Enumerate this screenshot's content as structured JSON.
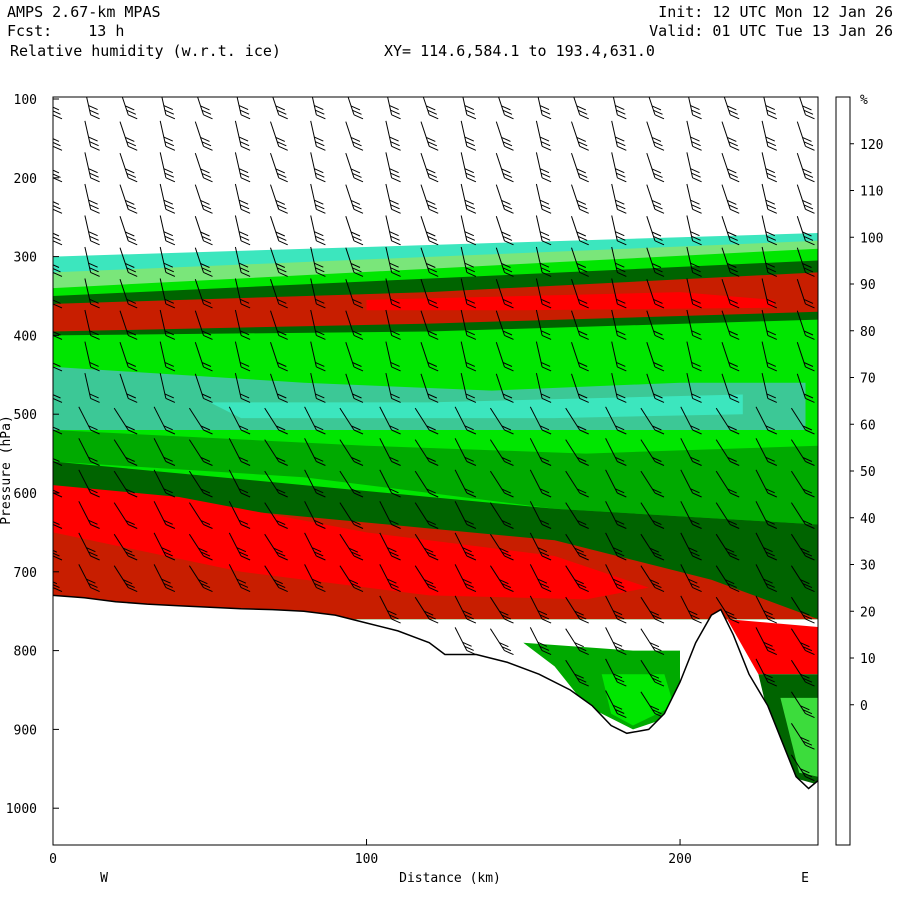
{
  "header": {
    "model": "AMPS 2.67-km MPAS",
    "fcst": "Fcst:    13 h",
    "field": "Relative humidity (w.r.t. ice)",
    "xy": "XY= 114.6,584.1 to 193.4,631.0",
    "init": "Init: 12 UTC Mon 12 Jan 26",
    "valid": "Valid: 01 UTC Tue 13 Jan 26"
  },
  "chart_data": {
    "type": "heatmap",
    "title": "Relative humidity (w.r.t. ice)",
    "xlabel": "Distance (km)",
    "ylabel": "Pressure (hPa)",
    "xlim": [
      0,
      244
    ],
    "ylim": [
      1050,
      100
    ],
    "x_ticks": [
      0,
      100,
      200
    ],
    "y_ticks": [
      100,
      200,
      300,
      400,
      500,
      600,
      700,
      800,
      900,
      1000
    ],
    "x_end_labels": {
      "left": "W",
      "right": "E"
    },
    "colorbar": {
      "unit": "%",
      "labels": [
        120,
        110,
        100,
        90,
        80,
        70,
        60,
        50,
        40,
        30,
        20,
        10,
        0
      ],
      "colors": [
        "#ff0000",
        "#c81e00",
        "#3c5a00",
        "#006400",
        "#00aa00",
        "#00e600",
        "#3cdc3c",
        "#7ae67a",
        "#3cc896",
        "#3ce6be",
        "#c8fae6",
        "#ffffff",
        "#ffffff",
        "#ffffff",
        "#ffffff",
        "#ffffff"
      ]
    },
    "terrain": [
      [
        0,
        730
      ],
      [
        10,
        733
      ],
      [
        20,
        738
      ],
      [
        30,
        741
      ],
      [
        40,
        743
      ],
      [
        50,
        745
      ],
      [
        60,
        747
      ],
      [
        70,
        748
      ],
      [
        80,
        750
      ],
      [
        90,
        755
      ],
      [
        100,
        765
      ],
      [
        110,
        775
      ],
      [
        120,
        790
      ],
      [
        125,
        805
      ],
      [
        135,
        805
      ],
      [
        145,
        815
      ],
      [
        155,
        830
      ],
      [
        165,
        850
      ],
      [
        172,
        870
      ],
      [
        178,
        895
      ],
      [
        183,
        905
      ],
      [
        190,
        900
      ],
      [
        195,
        880
      ],
      [
        200,
        840
      ],
      [
        205,
        790
      ],
      [
        210,
        755
      ],
      [
        213,
        748
      ],
      [
        217,
        780
      ],
      [
        222,
        830
      ],
      [
        228,
        870
      ],
      [
        233,
        920
      ],
      [
        237,
        960
      ],
      [
        241,
        975
      ],
      [
        244,
        965
      ]
    ],
    "layers": [
      {
        "rh": 30,
        "points": [
          [
            0,
            300
          ],
          [
            244,
            270
          ],
          [
            244,
            760
          ],
          [
            0,
            760
          ]
        ]
      },
      {
        "rh": 50,
        "points": [
          [
            0,
            320
          ],
          [
            244,
            280
          ],
          [
            244,
            760
          ],
          [
            0,
            760
          ]
        ]
      },
      {
        "rh": 70,
        "points": [
          [
            0,
            340
          ],
          [
            244,
            290
          ],
          [
            244,
            760
          ],
          [
            0,
            760
          ]
        ]
      },
      {
        "rh": 90,
        "points": [
          [
            0,
            350
          ],
          [
            244,
            305
          ],
          [
            244,
            380
          ],
          [
            120,
            395
          ],
          [
            0,
            400
          ]
        ]
      },
      {
        "rh": 110,
        "points": [
          [
            0,
            360
          ],
          [
            120,
            345
          ],
          [
            244,
            320
          ],
          [
            244,
            370
          ],
          [
            120,
            385
          ],
          [
            0,
            395
          ]
        ]
      },
      {
        "rh": 120,
        "points": [
          [
            100,
            355
          ],
          [
            150,
            350
          ],
          [
            200,
            345
          ],
          [
            230,
            355
          ],
          [
            230,
            365
          ],
          [
            150,
            368
          ],
          [
            100,
            368
          ]
        ]
      },
      {
        "rh": 40,
        "points": [
          [
            0,
            440
          ],
          [
            80,
            460
          ],
          [
            140,
            470
          ],
          [
            200,
            460
          ],
          [
            240,
            460
          ],
          [
            240,
            520
          ],
          [
            180,
            520
          ],
          [
            100,
            520
          ],
          [
            0,
            520
          ]
        ]
      },
      {
        "rh": 30,
        "points": [
          [
            50,
            485
          ],
          [
            120,
            485
          ],
          [
            170,
            480
          ],
          [
            220,
            475
          ],
          [
            220,
            500
          ],
          [
            160,
            505
          ],
          [
            60,
            505
          ]
        ]
      },
      {
        "rh": 80,
        "points": [
          [
            0,
            520
          ],
          [
            100,
            540
          ],
          [
            170,
            550
          ],
          [
            244,
            540
          ],
          [
            244,
            640
          ],
          [
            160,
            620
          ],
          [
            80,
            580
          ],
          [
            0,
            560
          ]
        ]
      },
      {
        "rh": 90,
        "points": [
          [
            0,
            560
          ],
          [
            80,
            590
          ],
          [
            160,
            620
          ],
          [
            244,
            640
          ],
          [
            244,
            760
          ],
          [
            0,
            760
          ]
        ]
      },
      {
        "rh": 110,
        "points": [
          [
            0,
            600
          ],
          [
            80,
            630
          ],
          [
            160,
            660
          ],
          [
            210,
            710
          ],
          [
            244,
            760
          ],
          [
            0,
            760
          ]
        ]
      },
      {
        "rh": 120,
        "points": [
          [
            0,
            590
          ],
          [
            40,
            605
          ],
          [
            100,
            650
          ],
          [
            160,
            680
          ],
          [
            190,
            720
          ],
          [
            170,
            735
          ],
          [
            120,
            730
          ],
          [
            60,
            700
          ],
          [
            0,
            650
          ]
        ]
      },
      {
        "rh": 120,
        "points": [
          [
            215,
            760
          ],
          [
            244,
            770
          ],
          [
            244,
            830
          ],
          [
            225,
            830
          ]
        ]
      },
      {
        "rh": 80,
        "points": [
          [
            150,
            790
          ],
          [
            185,
            800
          ],
          [
            200,
            800
          ],
          [
            200,
            880
          ],
          [
            185,
            900
          ],
          [
            170,
            870
          ],
          [
            160,
            820
          ]
        ]
      },
      {
        "rh": 70,
        "points": [
          [
            175,
            830
          ],
          [
            195,
            830
          ],
          [
            198,
            870
          ],
          [
            185,
            895
          ],
          [
            178,
            880
          ]
        ]
      },
      {
        "rh": 90,
        "points": [
          [
            225,
            830
          ],
          [
            244,
            830
          ],
          [
            244,
            970
          ],
          [
            235,
            960
          ],
          [
            228,
            880
          ]
        ]
      },
      {
        "rh": 60,
        "points": [
          [
            232,
            860
          ],
          [
            244,
            860
          ],
          [
            244,
            960
          ],
          [
            238,
            955
          ]
        ]
      }
    ],
    "wind_columns_x": [
      0,
      12,
      24,
      36,
      48,
      60,
      72,
      84,
      96,
      108,
      120,
      132,
      144,
      156,
      168,
      180,
      192,
      204,
      216,
      228,
      240
    ],
    "wind_levels_hpa": [
      120,
      160,
      200,
      240,
      280,
      320,
      360,
      400,
      440,
      480,
      520,
      560,
      600,
      640,
      680,
      720,
      760,
      800,
      840,
      880,
      920,
      960
    ]
  }
}
